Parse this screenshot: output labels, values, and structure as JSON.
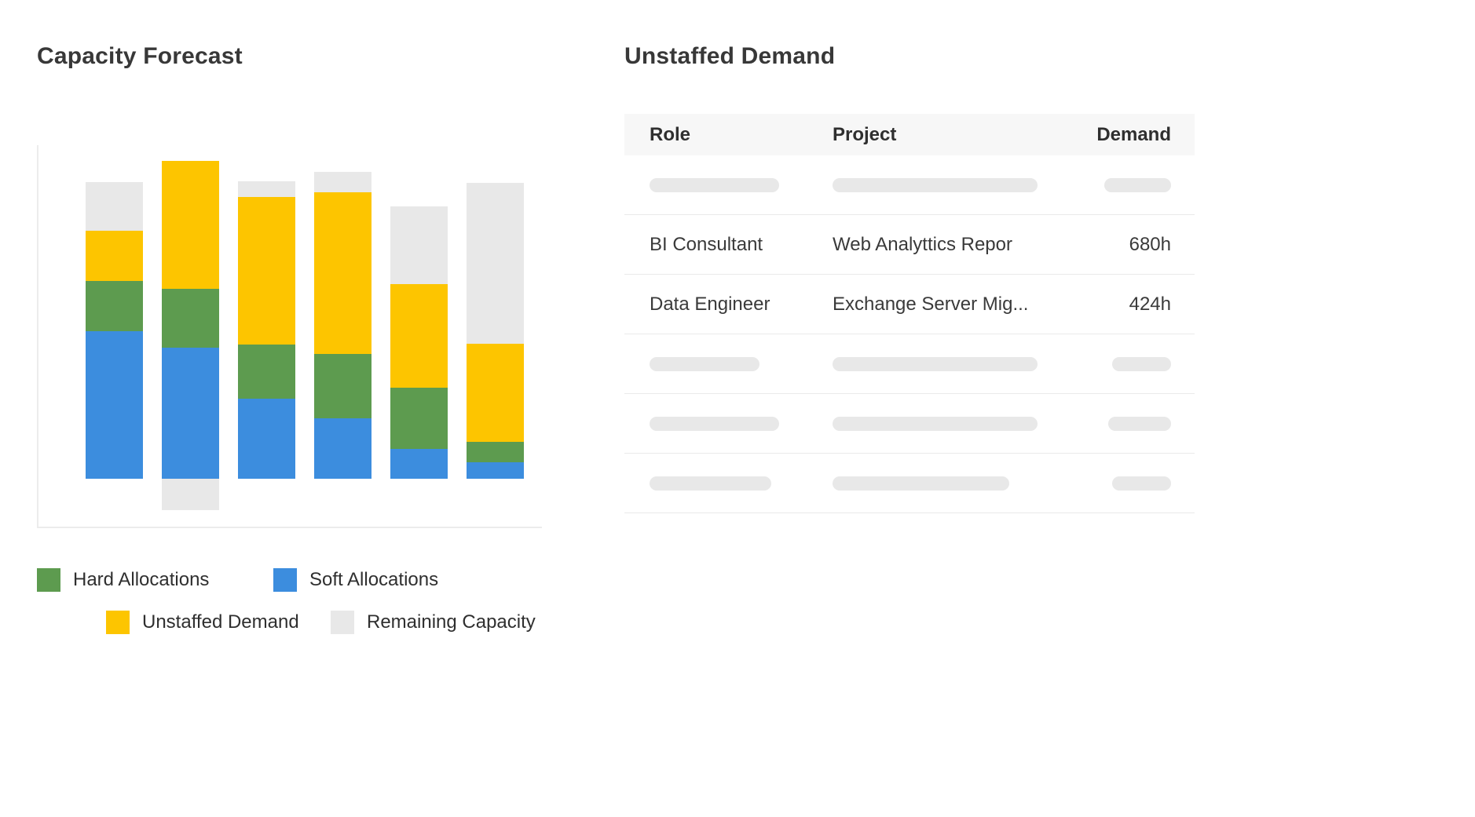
{
  "capacity_forecast": {
    "title": "Capacity Forecast",
    "legend": [
      {
        "label": "Hard Allocations",
        "color": "#5d9b4f",
        "icon": "hard-allocations-swatch"
      },
      {
        "label": "Soft Allocations",
        "color": "#3c8dde",
        "icon": "soft-allocations-swatch"
      },
      {
        "label": "Unstaffed Demand",
        "color": "#fdc500",
        "icon": "unstaffed-demand-swatch"
      },
      {
        "label": "Remaining Capacity",
        "color": "#e8e8e8",
        "icon": "remaining-capacity-swatch"
      }
    ]
  },
  "chart_data": {
    "type": "bar",
    "stacked": true,
    "title": "Capacity Forecast",
    "xlabel": "",
    "ylabel": "",
    "categories": [
      "",
      "",
      "",
      "",
      "",
      ""
    ],
    "series": [
      {
        "name": "Soft Allocations",
        "color": "#3c8dde",
        "values": [
          188,
          167,
          102,
          77,
          38,
          21
        ]
      },
      {
        "name": "Hard Allocations",
        "color": "#5d9b4f",
        "values": [
          64,
          75,
          69,
          82,
          78,
          26
        ]
      },
      {
        "name": "Unstaffed Demand",
        "color": "#fdc500",
        "values": [
          64,
          163,
          188,
          206,
          132,
          125
        ]
      },
      {
        "name": "Remaining Capacity",
        "color": "#e8e8e8",
        "values": [
          62,
          -40,
          20,
          26,
          99,
          205
        ]
      }
    ],
    "ylim": [
      -65,
      425
    ],
    "grid": false,
    "legend_position": "bottom"
  },
  "unstaffed_demand": {
    "title": "Unstaffed Demand",
    "columns": [
      "Role",
      "Project",
      "Demand"
    ],
    "rows": [
      {
        "type": "skeleton"
      },
      {
        "type": "data",
        "role": "BI Consultant",
        "project": "Web Analyttics Repor",
        "demand": "680h"
      },
      {
        "type": "data",
        "role": "Data Engineer",
        "project": "Exchange Server Mig...",
        "demand": "424h"
      },
      {
        "type": "skeleton"
      },
      {
        "type": "skeleton"
      },
      {
        "type": "skeleton"
      }
    ]
  }
}
